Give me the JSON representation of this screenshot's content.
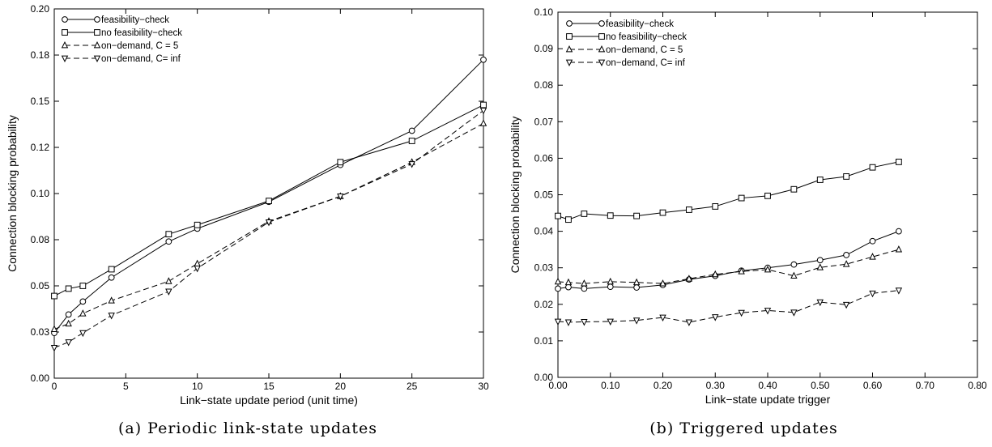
{
  "chart_data": [
    {
      "type": "line",
      "caption": "(a) Periodic link-state updates",
      "xlabel": "Link−state update period (unit time)",
      "ylabel": "Connection blocking probability",
      "xlim": [
        0,
        30
      ],
      "ylim": [
        0,
        0.2
      ],
      "xticks": [
        0,
        5,
        10,
        15,
        20,
        25,
        30
      ],
      "xtick_labels": [
        "0",
        "5",
        "10",
        "15",
        "20",
        "25",
        "30"
      ],
      "yticks": [
        0,
        0.025,
        0.05,
        0.075,
        0.1,
        0.125,
        0.15,
        0.175,
        0.2
      ],
      "ytick_labels": [
        "0.00",
        "0.03",
        "0.05",
        "0.08",
        "0.10",
        "0.12",
        "0.15",
        "0.18",
        "0.20"
      ],
      "grid": false,
      "legend_position": "top-left",
      "x": [
        0,
        1,
        2,
        4,
        8,
        10,
        15,
        20,
        25,
        30
      ],
      "series": [
        {
          "name": "feasibility−check",
          "marker": "circle",
          "dash": "solid",
          "values": [
            0.0245,
            0.0345,
            0.0415,
            0.0545,
            0.074,
            0.081,
            0.0955,
            0.1155,
            0.134,
            0.1725
          ]
        },
        {
          "name": "no feasibility−check",
          "marker": "square",
          "dash": "solid",
          "values": [
            0.0445,
            0.0485,
            0.05,
            0.059,
            0.078,
            0.083,
            0.096,
            0.117,
            0.1285,
            0.148
          ]
        },
        {
          "name": "on−demand, C = 5",
          "marker": "triangle-up",
          "dash": "dashed",
          "values": [
            0.0265,
            0.0295,
            0.035,
            0.042,
            0.0525,
            0.062,
            0.085,
            0.0985,
            0.117,
            0.138
          ]
        },
        {
          "name": "on−demand, C= inf",
          "marker": "triangle-down",
          "dash": "dashed",
          "values": [
            0.0165,
            0.0195,
            0.0245,
            0.034,
            0.047,
            0.0595,
            0.0845,
            0.0985,
            0.116,
            0.145
          ]
        }
      ]
    },
    {
      "type": "line",
      "caption": "(b) Triggered updates",
      "xlabel": "Link−state update trigger",
      "ylabel": "Connection blocking probability",
      "xlim": [
        0,
        0.8
      ],
      "ylim": [
        0,
        0.1
      ],
      "xticks": [
        0,
        0.1,
        0.2,
        0.3,
        0.4,
        0.5,
        0.6,
        0.7,
        0.8
      ],
      "xtick_labels": [
        "0.00",
        "0.10",
        "0.20",
        "0.30",
        "0.40",
        "0.50",
        "0.60",
        "0.70",
        "0.80"
      ],
      "yticks": [
        0,
        0.01,
        0.02,
        0.03,
        0.04,
        0.05,
        0.06,
        0.07,
        0.08,
        0.09,
        0.1
      ],
      "ytick_labels": [
        "0.00",
        "0.01",
        "0.02",
        "0.03",
        "0.04",
        "0.05",
        "0.06",
        "0.07",
        "0.08",
        "0.09",
        "0.10"
      ],
      "grid": false,
      "legend_position": "top-left",
      "x": [
        0,
        0.02,
        0.05,
        0.1,
        0.15,
        0.2,
        0.25,
        0.3,
        0.35,
        0.4,
        0.45,
        0.5,
        0.55,
        0.6,
        0.65
      ],
      "series": [
        {
          "name": "feasibility−check",
          "marker": "circle",
          "dash": "solid",
          "values": [
            0.0243,
            0.0247,
            0.0243,
            0.0248,
            0.0246,
            0.0253,
            0.0268,
            0.0278,
            0.0292,
            0.03,
            0.0309,
            0.0321,
            0.0335,
            0.0373,
            0.04
          ]
        },
        {
          "name": "no feasibility−check",
          "marker": "square",
          "dash": "solid",
          "values": [
            0.0442,
            0.0432,
            0.0448,
            0.0443,
            0.0442,
            0.0451,
            0.0459,
            0.0468,
            0.0491,
            0.0497,
            0.0515,
            0.0541,
            0.055,
            0.0575,
            0.059
          ]
        },
        {
          "name": "on−demand, C = 5",
          "marker": "triangle-up",
          "dash": "dashed",
          "values": [
            0.0262,
            0.026,
            0.0257,
            0.0262,
            0.026,
            0.0257,
            0.027,
            0.0282,
            0.029,
            0.0295,
            0.0278,
            0.0301,
            0.031,
            0.033,
            0.035
          ]
        },
        {
          "name": "on−demand, C= inf",
          "marker": "triangle-down",
          "dash": "dashed",
          "values": [
            0.0153,
            0.0151,
            0.0152,
            0.0153,
            0.0156,
            0.0164,
            0.0151,
            0.0165,
            0.0177,
            0.0183,
            0.0178,
            0.0206,
            0.0199,
            0.023,
            0.0238
          ]
        }
      ]
    }
  ]
}
